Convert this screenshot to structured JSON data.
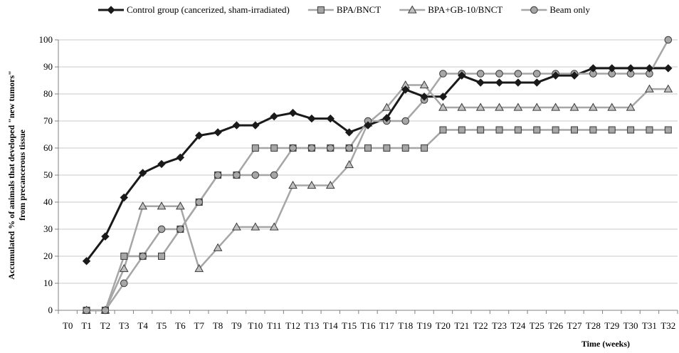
{
  "chart_data": {
    "type": "line",
    "x": [
      "T0",
      "T1",
      "T2",
      "T3",
      "T4",
      "T5",
      "T6",
      "T7",
      "T8",
      "T9",
      "T10",
      "T11",
      "T12",
      "T13",
      "T14",
      "T15",
      "T16",
      "T17",
      "T18",
      "T19",
      "T20",
      "T21",
      "T22",
      "T23",
      "T24",
      "T25",
      "T26",
      "T27",
      "T28",
      "T29",
      "T30",
      "T31",
      "T32"
    ],
    "ylim": [
      0,
      100
    ],
    "yticks": [
      0,
      10,
      20,
      30,
      40,
      50,
      60,
      70,
      80,
      90,
      100
    ],
    "ylabel": [
      "Accumulated % of animals that developed \"new tumors\"",
      "from precancerous tissue"
    ],
    "xlabel": "Time (weeks)",
    "grid": true,
    "legend_position": "top",
    "series": [
      {
        "name": "Control group (cancerized, sham-irradiated)",
        "marker": "diamond",
        "color": "#1a1a1a",
        "values": [
          null,
          18.2,
          27.3,
          41.7,
          50.8,
          54.1,
          56.5,
          64.6,
          65.8,
          68.4,
          68.4,
          71.7,
          73.0,
          70.9,
          70.9,
          65.8,
          68.4,
          71.1,
          81.6,
          79.0,
          79.0,
          86.8,
          84.2,
          84.2,
          84.2,
          84.2,
          86.8,
          86.8,
          89.5,
          89.5,
          89.5,
          89.5,
          89.5
        ]
      },
      {
        "name": "BPA/BNCT",
        "marker": "square",
        "color": "#a6a6a6",
        "values": [
          null,
          0,
          0,
          20,
          20,
          20,
          30,
          40,
          50,
          50,
          60,
          60,
          60,
          60,
          60,
          60,
          60,
          60,
          60,
          60,
          66.7,
          66.7,
          66.7,
          66.7,
          66.7,
          66.7,
          66.7,
          66.7,
          66.7,
          66.7,
          66.7,
          66.7,
          66.7
        ]
      },
      {
        "name": "BPA+GB-10/BNCT",
        "marker": "triangle",
        "color": "#a6a6a6",
        "values": [
          null,
          0,
          0,
          15.4,
          38.5,
          38.5,
          38.5,
          15.4,
          23.1,
          30.8,
          30.8,
          30.8,
          46.2,
          46.2,
          46.2,
          53.8,
          69.2,
          75,
          83.3,
          83.3,
          75,
          75,
          75,
          75,
          75,
          75,
          75,
          75,
          75,
          75,
          75,
          81.8,
          81.8
        ]
      },
      {
        "name": "Beam only",
        "marker": "circle",
        "color": "#a6a6a6",
        "values": [
          null,
          0,
          0,
          10,
          20,
          30,
          30,
          40,
          50,
          50,
          50,
          50,
          60,
          60,
          60,
          60,
          70,
          70,
          70,
          77.8,
          87.5,
          87.5,
          87.5,
          87.5,
          87.5,
          87.5,
          87.5,
          87.5,
          87.5,
          87.5,
          87.5,
          87.5,
          100
        ]
      }
    ]
  }
}
